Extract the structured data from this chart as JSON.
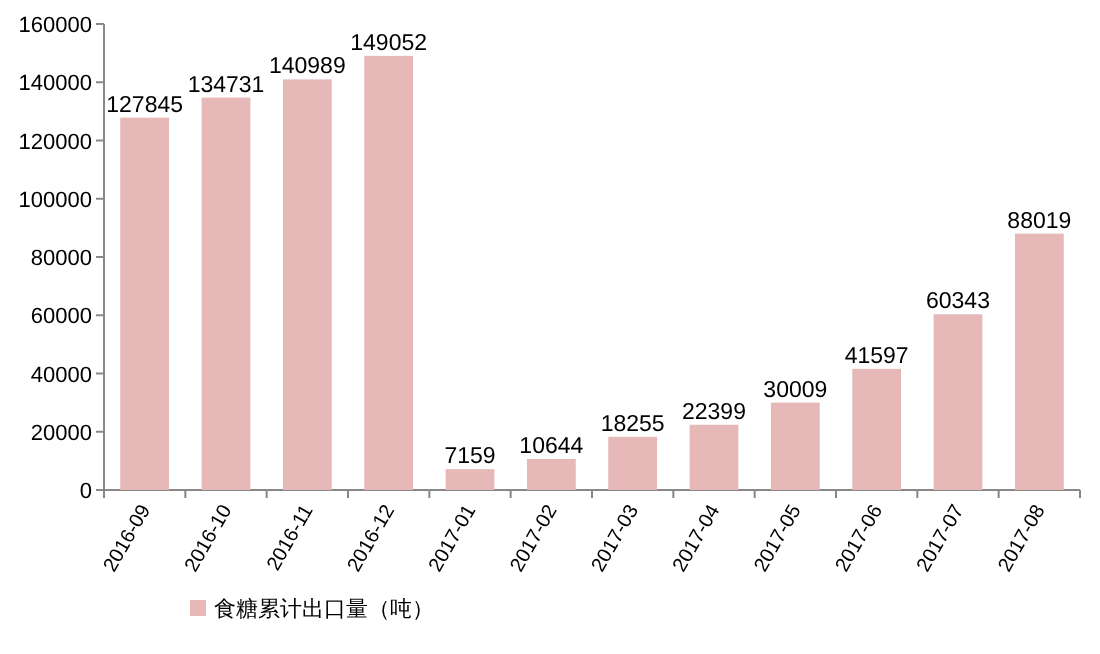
{
  "chart_data": {
    "type": "bar",
    "categories": [
      "2016-09",
      "2016-10",
      "2016-11",
      "2016-12",
      "2017-01",
      "2017-02",
      "2017-03",
      "2017-04",
      "2017-05",
      "2017-06",
      "2017-07",
      "2017-08"
    ],
    "series": [
      {
        "name": "食糖累计出口量（吨）",
        "color": "#e6b9b8",
        "values": [
          127845,
          134731,
          140989,
          149052,
          7159,
          10644,
          18255,
          22399,
          30009,
          41597,
          60343,
          88019
        ]
      }
    ],
    "ylim": [
      0,
      160000
    ],
    "yticks": [
      0,
      20000,
      40000,
      60000,
      80000,
      100000,
      120000,
      140000,
      160000
    ],
    "data_labels": true,
    "legend": "bottom left",
    "grid": false
  }
}
